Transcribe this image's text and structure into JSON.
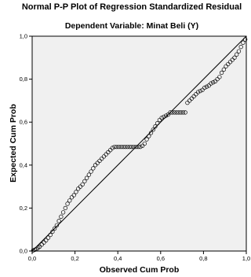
{
  "chart_data": {
    "type": "scatter",
    "title": "Normal P-P Plot of Regression Standardized Residual",
    "subtitle": "Dependent Variable: Minat Beli (Y)",
    "xlabel": "Observed Cum Prob",
    "ylabel": "Expected Cum Prob",
    "xlim": [
      0,
      1
    ],
    "ylim": [
      0,
      1
    ],
    "xticks": [
      "0,0",
      "0,2",
      "0,4",
      "0,6",
      "0,8",
      "1,0"
    ],
    "yticks": [
      "0,0",
      "0,2",
      "0,4",
      "0,6",
      "0,8",
      "1,0"
    ],
    "grid": false,
    "legend": "none",
    "reference_line": {
      "from": [
        0,
        0
      ],
      "to": [
        1,
        1
      ]
    },
    "colors": {
      "plot_background": "#f0f0f0",
      "marker": "#000000",
      "line": "#000000"
    },
    "series": [
      {
        "marker": "open-circle",
        "points": [
          [
            0.005,
            0.003
          ],
          [
            0.012,
            0.006
          ],
          [
            0.02,
            0.01
          ],
          [
            0.028,
            0.015
          ],
          [
            0.035,
            0.02
          ],
          [
            0.045,
            0.03
          ],
          [
            0.055,
            0.04
          ],
          [
            0.065,
            0.05
          ],
          [
            0.075,
            0.062
          ],
          [
            0.085,
            0.075
          ],
          [
            0.095,
            0.09
          ],
          [
            0.105,
            0.105
          ],
          [
            0.115,
            0.12
          ],
          [
            0.125,
            0.14
          ],
          [
            0.135,
            0.16
          ],
          [
            0.145,
            0.18
          ],
          [
            0.155,
            0.2
          ],
          [
            0.165,
            0.22
          ],
          [
            0.175,
            0.235
          ],
          [
            0.185,
            0.25
          ],
          [
            0.195,
            0.26
          ],
          [
            0.205,
            0.275
          ],
          [
            0.215,
            0.29
          ],
          [
            0.225,
            0.3
          ],
          [
            0.235,
            0.31
          ],
          [
            0.245,
            0.325
          ],
          [
            0.255,
            0.34
          ],
          [
            0.265,
            0.355
          ],
          [
            0.275,
            0.37
          ],
          [
            0.285,
            0.385
          ],
          [
            0.295,
            0.4
          ],
          [
            0.305,
            0.41
          ],
          [
            0.315,
            0.42
          ],
          [
            0.325,
            0.43
          ],
          [
            0.335,
            0.44
          ],
          [
            0.345,
            0.45
          ],
          [
            0.355,
            0.46
          ],
          [
            0.365,
            0.47
          ],
          [
            0.375,
            0.48
          ],
          [
            0.385,
            0.485
          ],
          [
            0.395,
            0.485
          ],
          [
            0.405,
            0.485
          ],
          [
            0.415,
            0.485
          ],
          [
            0.425,
            0.485
          ],
          [
            0.435,
            0.485
          ],
          [
            0.445,
            0.485
          ],
          [
            0.455,
            0.485
          ],
          [
            0.465,
            0.485
          ],
          [
            0.475,
            0.485
          ],
          [
            0.485,
            0.485
          ],
          [
            0.495,
            0.485
          ],
          [
            0.505,
            0.485
          ],
          [
            0.515,
            0.49
          ],
          [
            0.525,
            0.5
          ],
          [
            0.535,
            0.52
          ],
          [
            0.545,
            0.535
          ],
          [
            0.555,
            0.55
          ],
          [
            0.565,
            0.565
          ],
          [
            0.575,
            0.58
          ],
          [
            0.585,
            0.595
          ],
          [
            0.595,
            0.61
          ],
          [
            0.605,
            0.62
          ],
          [
            0.615,
            0.625
          ],
          [
            0.625,
            0.63
          ],
          [
            0.635,
            0.635
          ],
          [
            0.645,
            0.645
          ],
          [
            0.655,
            0.645
          ],
          [
            0.665,
            0.645
          ],
          [
            0.675,
            0.645
          ],
          [
            0.685,
            0.645
          ],
          [
            0.695,
            0.645
          ],
          [
            0.705,
            0.645
          ],
          [
            0.715,
            0.645
          ],
          [
            0.725,
            0.69
          ],
          [
            0.735,
            0.7
          ],
          [
            0.745,
            0.71
          ],
          [
            0.755,
            0.72
          ],
          [
            0.765,
            0.73
          ],
          [
            0.775,
            0.74
          ],
          [
            0.785,
            0.745
          ],
          [
            0.795,
            0.75
          ],
          [
            0.805,
            0.76
          ],
          [
            0.815,
            0.765
          ],
          [
            0.825,
            0.77
          ],
          [
            0.835,
            0.78
          ],
          [
            0.845,
            0.785
          ],
          [
            0.855,
            0.79
          ],
          [
            0.865,
            0.8
          ],
          [
            0.875,
            0.81
          ],
          [
            0.885,
            0.83
          ],
          [
            0.895,
            0.845
          ],
          [
            0.905,
            0.86
          ],
          [
            0.915,
            0.87
          ],
          [
            0.925,
            0.88
          ],
          [
            0.935,
            0.89
          ],
          [
            0.945,
            0.9
          ],
          [
            0.955,
            0.915
          ],
          [
            0.965,
            0.93
          ],
          [
            0.975,
            0.95
          ],
          [
            0.985,
            0.97
          ],
          [
            0.995,
            0.985
          ]
        ]
      }
    ]
  }
}
